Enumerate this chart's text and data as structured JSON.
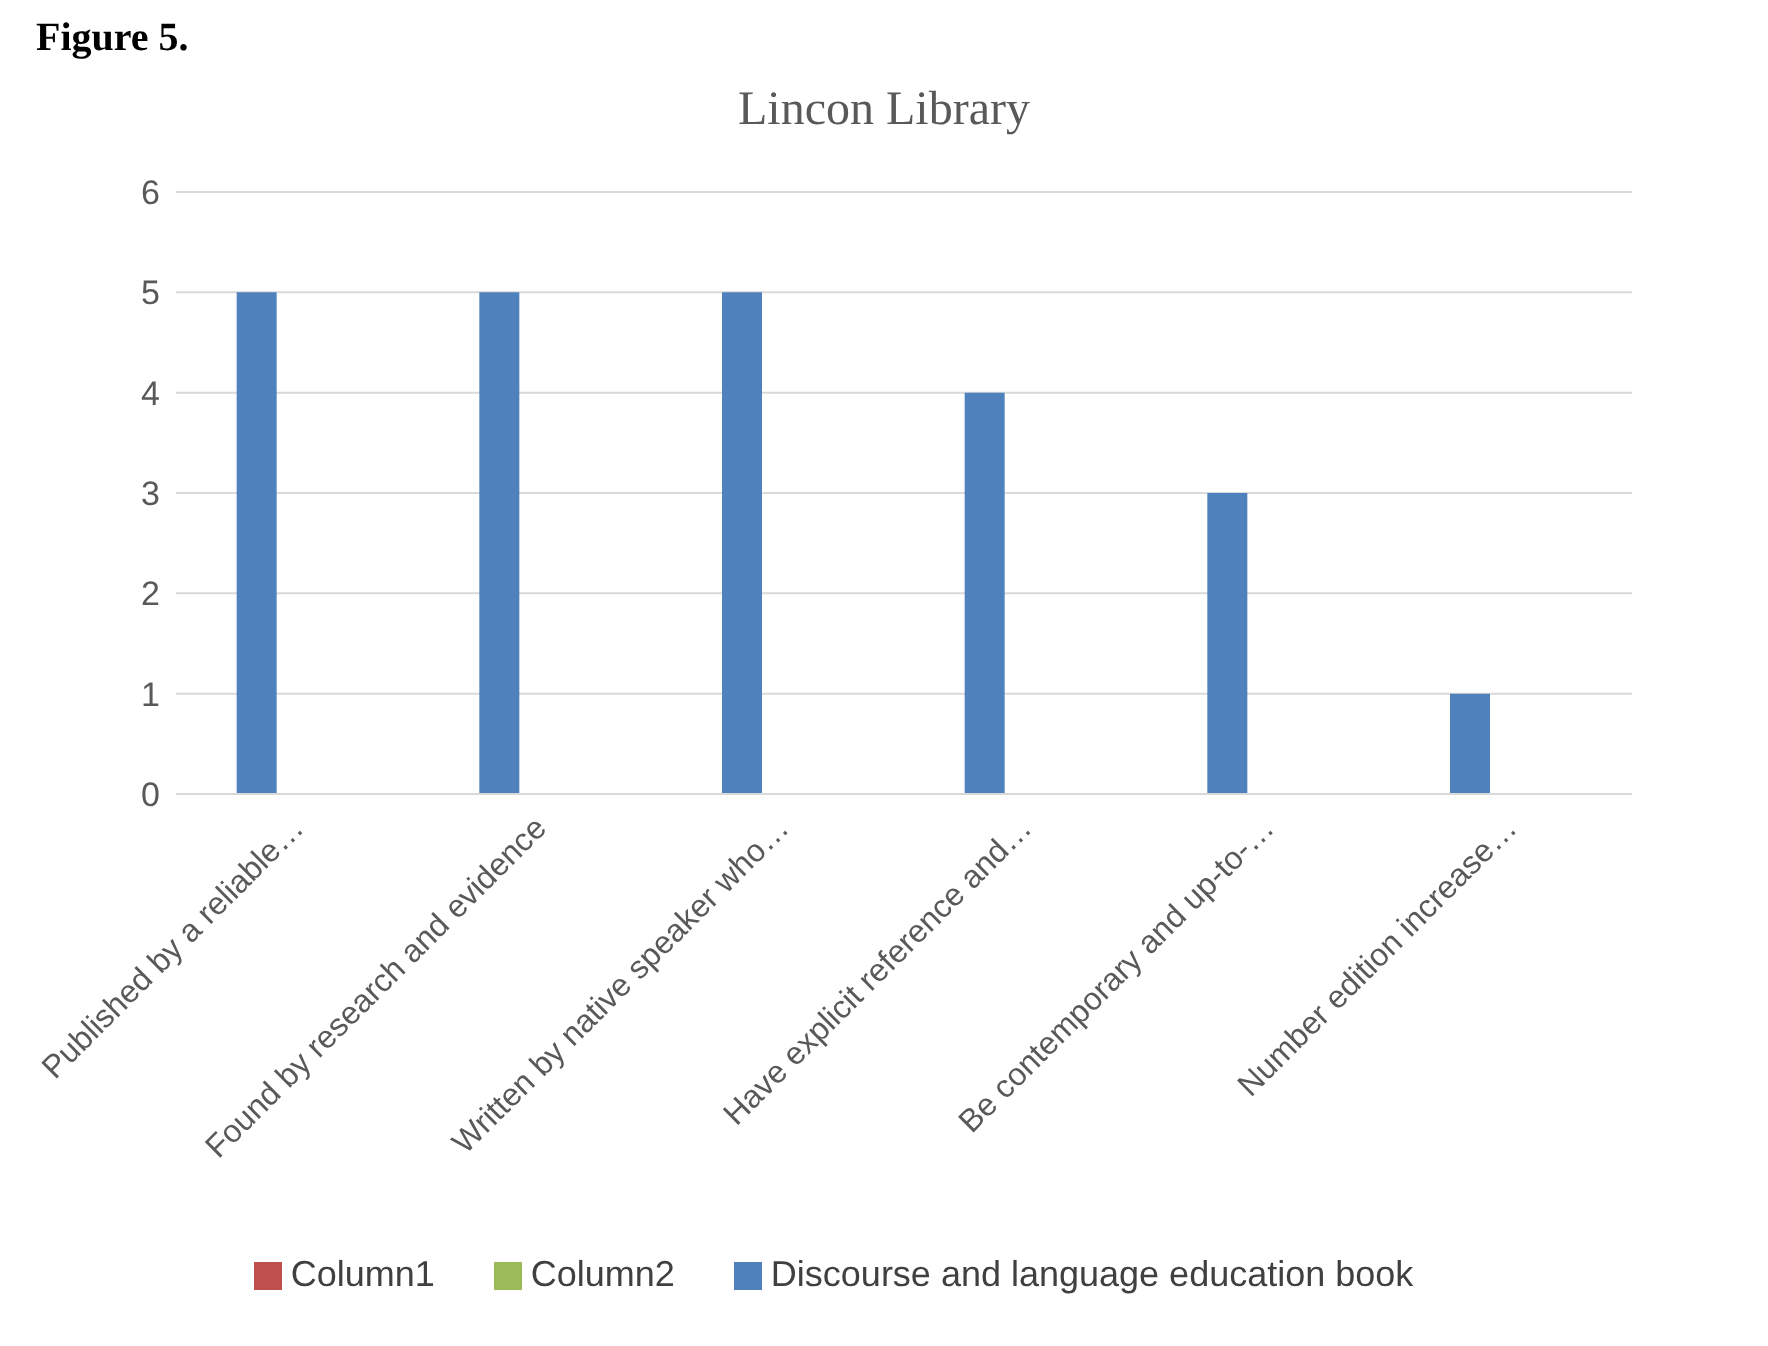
{
  "chart_data": {
    "type": "bar",
    "title": "Lincon Library",
    "annotations": [
      "Figure 5."
    ],
    "categories": [
      "Published by a reliable…",
      "Found by research and evidence",
      "Written by native speaker who…",
      "Have explicit reference and…",
      "Be contemporary and up-to-…",
      "Number edition increase…"
    ],
    "series": [
      {
        "name": "Discourse and language education book",
        "color": "#4f81bd",
        "values": [
          5,
          5,
          5,
          4,
          3,
          1
        ]
      },
      {
        "name": "Column1",
        "color": "#c0504d",
        "values": [
          null,
          null,
          null,
          null,
          null,
          null
        ]
      },
      {
        "name": "Column2",
        "color": "#9bbb59",
        "values": [
          null,
          null,
          null,
          null,
          null,
          null
        ]
      }
    ],
    "ylim": [
      0,
      6
    ],
    "yticks": [
      0,
      1,
      2,
      3,
      4,
      5,
      6
    ],
    "grid": "y",
    "legend": "bottom"
  }
}
